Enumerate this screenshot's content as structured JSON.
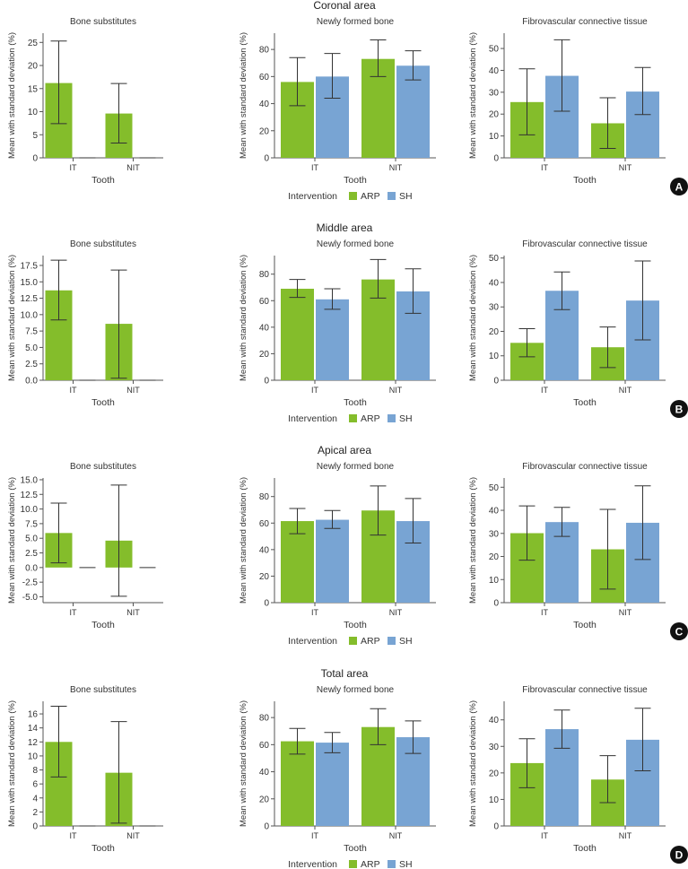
{
  "figure": {
    "axis_ylabel": "Mean with standard deviation (%)",
    "axis_xlabel": "Tooth",
    "legend_title": "Intervention",
    "colors": {
      "ARP": "#84bd2b",
      "SH": "#78a4d3"
    }
  },
  "chart_data": [
    {
      "row": "A",
      "region_title": "Coronal area",
      "panel_label": "A",
      "legend": [
        "ARP",
        "SH"
      ],
      "subplots": [
        {
          "type": "bar",
          "title": "Bone substitutes",
          "categories": [
            "IT",
            "NIT"
          ],
          "ylim": [
            0,
            27
          ],
          "yticks": [
            0,
            5,
            10,
            15,
            20,
            25
          ],
          "series": [
            {
              "name": "ARP",
              "values": [
                16.2,
                9.6
              ],
              "err_low": [
                7.4,
                3.2
              ],
              "err_high": [
                25.3,
                16.1
              ]
            },
            {
              "name": "SH",
              "values": [
                0,
                0
              ],
              "err_low": [
                0,
                0
              ],
              "err_high": [
                0,
                0
              ]
            }
          ]
        },
        {
          "type": "bar",
          "title": "Newly formed bone",
          "categories": [
            "IT",
            "NIT"
          ],
          "ylim": [
            0,
            92
          ],
          "yticks": [
            0,
            20,
            40,
            60,
            80
          ],
          "series": [
            {
              "name": "ARP",
              "values": [
                56,
                73
              ],
              "err_low": [
                38.5,
                60
              ],
              "err_high": [
                74,
                87
              ]
            },
            {
              "name": "SH",
              "values": [
                60,
                68
              ],
              "err_low": [
                44,
                57.5
              ],
              "err_high": [
                77,
                79
              ]
            }
          ]
        },
        {
          "type": "bar",
          "title": "Fibrovascular connective tissue",
          "categories": [
            "IT",
            "NIT"
          ],
          "ylim": [
            0,
            57
          ],
          "yticks": [
            0,
            10,
            20,
            30,
            40,
            50
          ],
          "series": [
            {
              "name": "ARP",
              "values": [
                25.5,
                15.8
              ],
              "err_low": [
                10.5,
                4.3
              ],
              "err_high": [
                40.7,
                27.5
              ]
            },
            {
              "name": "SH",
              "values": [
                37.5,
                30.3
              ],
              "err_low": [
                21.3,
                19.8
              ],
              "err_high": [
                54,
                41.3
              ]
            }
          ]
        }
      ]
    },
    {
      "row": "B",
      "region_title": "Middle area",
      "panel_label": "B",
      "legend": [
        "ARP",
        "SH"
      ],
      "subplots": [
        {
          "type": "bar",
          "title": "Bone substitutes",
          "categories": [
            "IT",
            "NIT"
          ],
          "ylim": [
            0,
            19
          ],
          "yticks": [
            0,
            2.5,
            5.0,
            7.5,
            10.0,
            12.5,
            15.0,
            17.5
          ],
          "tick_decimals": 1,
          "series": [
            {
              "name": "ARP",
              "values": [
                13.7,
                8.6
              ],
              "err_low": [
                9.2,
                0.3
              ],
              "err_high": [
                18.3,
                16.8
              ]
            },
            {
              "name": "SH",
              "values": [
                0,
                0
              ],
              "err_low": [
                0,
                0
              ],
              "err_high": [
                0,
                0
              ]
            }
          ]
        },
        {
          "type": "bar",
          "title": "Newly formed bone",
          "categories": [
            "IT",
            "NIT"
          ],
          "ylim": [
            0,
            94
          ],
          "yticks": [
            0,
            20,
            40,
            60,
            80
          ],
          "series": [
            {
              "name": "ARP",
              "values": [
                69,
                76
              ],
              "err_low": [
                62.5,
                62
              ],
              "err_high": [
                76,
                91
              ]
            },
            {
              "name": "SH",
              "values": [
                61,
                67
              ],
              "err_low": [
                53.5,
                50.5
              ],
              "err_high": [
                69,
                84
              ]
            }
          ]
        },
        {
          "type": "bar",
          "title": "Fibrovascular connective tissue",
          "categories": [
            "IT",
            "NIT"
          ],
          "ylim": [
            0,
            51
          ],
          "yticks": [
            0,
            10,
            20,
            30,
            40,
            50
          ],
          "series": [
            {
              "name": "ARP",
              "values": [
                15.3,
                13.5
              ],
              "err_low": [
                9.6,
                5.2
              ],
              "err_high": [
                21.1,
                21.8
              ]
            },
            {
              "name": "SH",
              "values": [
                36.6,
                32.6
              ],
              "err_low": [
                28.9,
                16.5
              ],
              "err_high": [
                44.3,
                48.8
              ]
            }
          ]
        }
      ]
    },
    {
      "row": "C",
      "region_title": "Apical area",
      "panel_label": "C",
      "legend": [
        "ARP",
        "SH"
      ],
      "subplots": [
        {
          "type": "bar",
          "title": "Bone substitutes",
          "categories": [
            "IT",
            "NIT"
          ],
          "ylim": [
            -6,
            15.3
          ],
          "yticks": [
            -5.0,
            -2.5,
            0.0,
            2.5,
            5.0,
            7.5,
            10.0,
            12.5,
            15.0
          ],
          "tick_decimals": 1,
          "series": [
            {
              "name": "ARP",
              "values": [
                5.9,
                4.6
              ],
              "err_low": [
                0.8,
                -4.9
              ],
              "err_high": [
                11.0,
                14.1
              ]
            },
            {
              "name": "SH",
              "values": [
                0,
                0
              ],
              "err_low": [
                0,
                0
              ],
              "err_high": [
                0,
                0
              ]
            }
          ]
        },
        {
          "type": "bar",
          "title": "Newly formed bone",
          "categories": [
            "IT",
            "NIT"
          ],
          "ylim": [
            0,
            94
          ],
          "yticks": [
            0,
            20,
            40,
            60,
            80
          ],
          "series": [
            {
              "name": "ARP",
              "values": [
                61.5,
                69.5
              ],
              "err_low": [
                52,
                51
              ],
              "err_high": [
                71,
                88
              ]
            },
            {
              "name": "SH",
              "values": [
                62.5,
                61.5
              ],
              "err_low": [
                56,
                45
              ],
              "err_high": [
                69.5,
                78.5
              ]
            }
          ]
        },
        {
          "type": "bar",
          "title": "Fibrovascular connective tissue",
          "categories": [
            "IT",
            "NIT"
          ],
          "ylim": [
            0,
            54
          ],
          "yticks": [
            0,
            10,
            20,
            30,
            40,
            50
          ],
          "series": [
            {
              "name": "ARP",
              "values": [
                30.1,
                23.1
              ],
              "err_low": [
                18.4,
                5.9
              ],
              "err_high": [
                41.9,
                40.4
              ]
            },
            {
              "name": "SH",
              "values": [
                34.9,
                34.6
              ],
              "err_low": [
                28.7,
                18.7
              ],
              "err_high": [
                41.3,
                50.6
              ]
            }
          ]
        }
      ]
    },
    {
      "row": "D",
      "region_title": "Total area",
      "panel_label": "D",
      "legend": [
        "ARP",
        "SH"
      ],
      "subplots": [
        {
          "type": "bar",
          "title": "Bone substitutes",
          "categories": [
            "IT",
            "NIT"
          ],
          "ylim": [
            0,
            17.8
          ],
          "yticks": [
            0,
            2,
            4,
            6,
            8,
            10,
            12,
            14,
            16
          ],
          "series": [
            {
              "name": "ARP",
              "values": [
                12.0,
                7.6
              ],
              "err_low": [
                7.0,
                0.4
              ],
              "err_high": [
                17.1,
                14.9
              ]
            },
            {
              "name": "SH",
              "values": [
                0,
                0
              ],
              "err_low": [
                0,
                0
              ],
              "err_high": [
                0,
                0
              ]
            }
          ]
        },
        {
          "type": "bar",
          "title": "Newly formed bone",
          "categories": [
            "IT",
            "NIT"
          ],
          "ylim": [
            0,
            92
          ],
          "yticks": [
            0,
            20,
            40,
            60,
            80
          ],
          "series": [
            {
              "name": "ARP",
              "values": [
                62.5,
                73
              ],
              "err_low": [
                53,
                60
              ],
              "err_high": [
                72,
                86.5
              ]
            },
            {
              "name": "SH",
              "values": [
                61.5,
                65.5
              ],
              "err_low": [
                54,
                53.5
              ],
              "err_high": [
                69,
                77.5
              ]
            }
          ]
        },
        {
          "type": "bar",
          "title": "Fibrovascular connective tissue",
          "categories": [
            "IT",
            "NIT"
          ],
          "ylim": [
            0,
            47
          ],
          "yticks": [
            0,
            10,
            20,
            30,
            40
          ],
          "series": [
            {
              "name": "ARP",
              "values": [
                23.7,
                17.5
              ],
              "err_low": [
                14.4,
                8.8
              ],
              "err_high": [
                32.9,
                26.5
              ]
            },
            {
              "name": "SH",
              "values": [
                36.5,
                32.5
              ],
              "err_low": [
                29.3,
                20.8
              ],
              "err_high": [
                43.7,
                44.4
              ]
            }
          ]
        }
      ]
    }
  ]
}
